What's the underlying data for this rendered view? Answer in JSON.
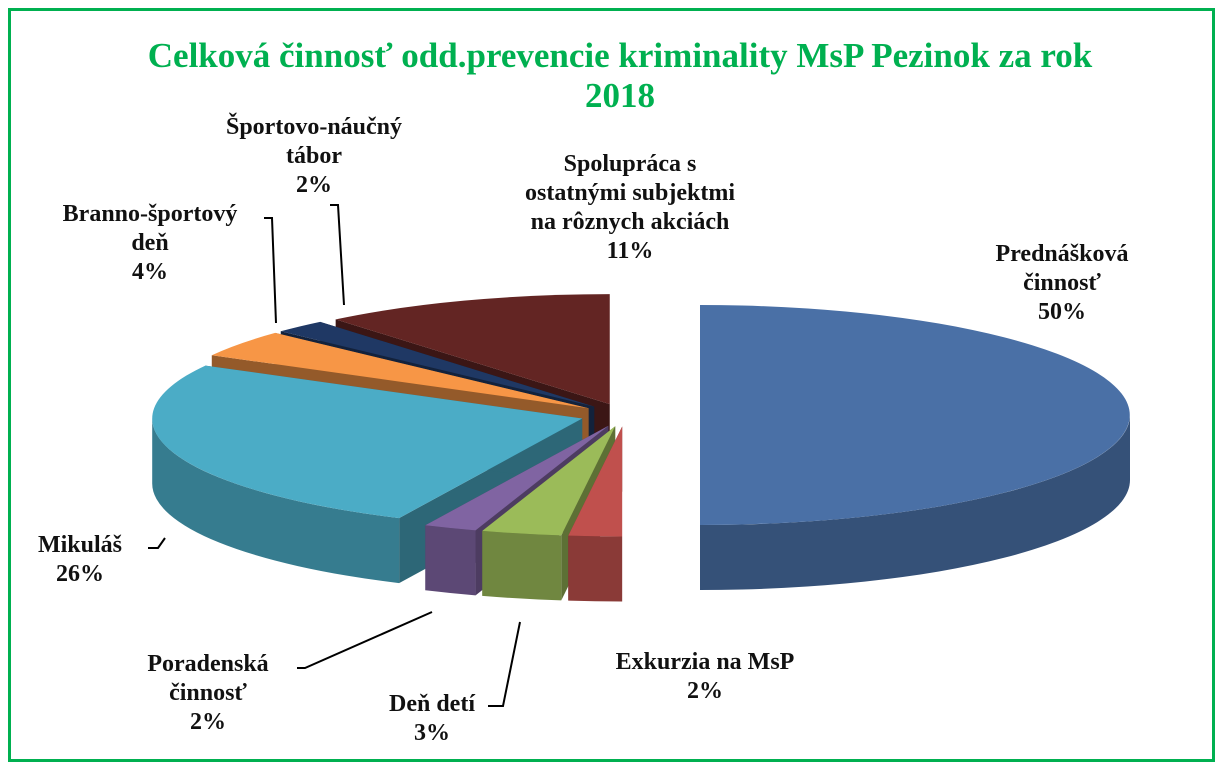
{
  "chart_data": {
    "type": "pie3d",
    "title": "Celková činnosť odd.prevencie kriminality MsP Pezinok za rok 2018",
    "categories": [
      "Prednášková činnosť",
      "Exkurzia na MsP",
      "Deň detí",
      "Poradenská činnosť",
      "Mikuláš",
      "Branno-športový deň",
      "Športovo-náučný tábor",
      "Spolupráca s ostatnými subjektmi na rôznych akciách"
    ],
    "values": [
      50,
      2,
      3,
      2,
      26,
      4,
      2,
      11
    ],
    "value_labels": [
      "50%",
      "2%",
      "3%",
      "2%",
      "26%",
      "4%",
      "2%",
      "11%"
    ],
    "colors": [
      "#4a70a6",
      "#c0504d",
      "#9bbb59",
      "#8064a2",
      "#4bacc6",
      "#f79646",
      "#1f3864",
      "#632523"
    ]
  }
}
